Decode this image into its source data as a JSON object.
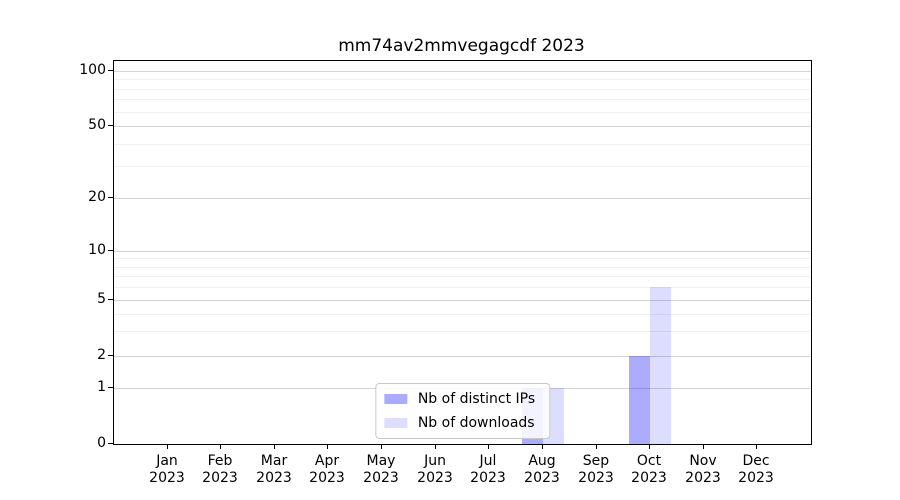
{
  "window": {
    "background": "#ffffff"
  },
  "chart_data": {
    "type": "bar",
    "title": "mm74av2mmvegagcdf 2023",
    "categories": [
      "Jan 2023",
      "Feb 2023",
      "Mar 2023",
      "Apr 2023",
      "May 2023",
      "Jun 2023",
      "Jul 2023",
      "Aug 2023",
      "Sep 2023",
      "Oct 2023",
      "Nov 2023",
      "Dec 2023"
    ],
    "series": [
      {
        "name": "Nb of distinct IPs",
        "color": "#0000ff54",
        "values": [
          0,
          0,
          0,
          0,
          0,
          0,
          0,
          1,
          0,
          2,
          0,
          0
        ]
      },
      {
        "name": "Nb of downloads",
        "color": "#0000ff22",
        "values": [
          0,
          0,
          0,
          0,
          0,
          0,
          0,
          1,
          0,
          6,
          0,
          0
        ]
      }
    ],
    "y_axis": {
      "scale": "symlog",
      "ticks": [
        0,
        1,
        2,
        5,
        10,
        20,
        50,
        100
      ],
      "minor_gridlines": [
        3,
        4,
        6,
        7,
        8,
        9,
        30,
        40,
        60,
        70,
        80,
        90
      ],
      "range": [
        0,
        100
      ],
      "grid": true
    },
    "x_axis": {
      "tick_label_lines": 2
    },
    "legend": {
      "location": "lower center"
    },
    "colors": {
      "grid_major": "#d5d5d5",
      "grid_minor": "#f0f0f0",
      "axis": "#000000",
      "text": "#000000"
    }
  }
}
